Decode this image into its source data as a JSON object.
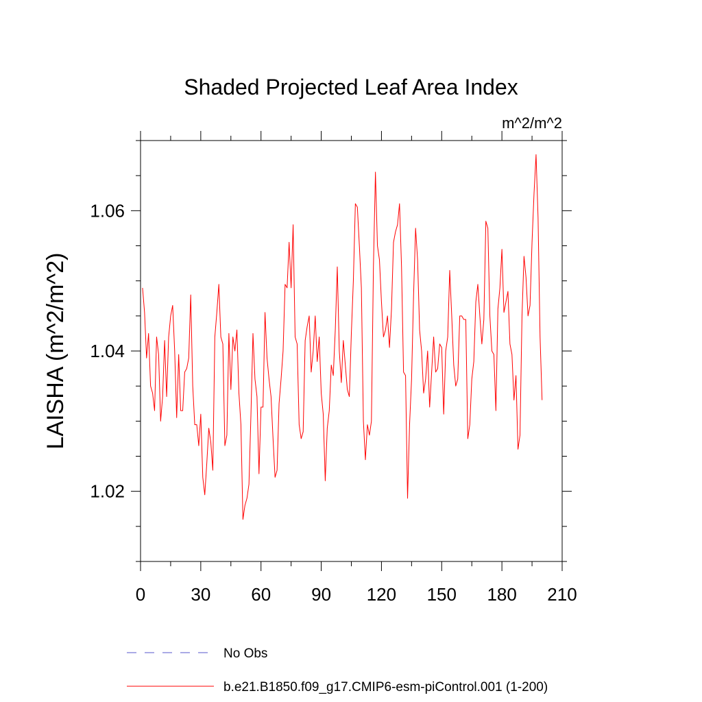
{
  "chart_data": {
    "type": "line",
    "title": "Shaded Projected Leaf Area Index",
    "units": "m^2/m^2",
    "ylabel": "LAISHA  (m^2/m^2)",
    "xlabel": "",
    "xlim": [
      0,
      210
    ],
    "ylim": [
      1.01,
      1.07
    ],
    "xticks": [
      0,
      30,
      60,
      90,
      120,
      150,
      180,
      210
    ],
    "xtick_labels": [
      "0",
      "30",
      "60",
      "90",
      "120",
      "150",
      "180",
      "210"
    ],
    "yticks": [
      1.02,
      1.04,
      1.06
    ],
    "ytick_labels": [
      "1.02",
      "1.04",
      "1.06"
    ],
    "legend": [
      {
        "label": "No Obs",
        "color": "#5555cc",
        "style": "dashed"
      },
      {
        "label": "b.e21.B1850.f09_g17.CMIP6-esm-piControl.001 (1-200)",
        "color": "#ff0000",
        "style": "solid"
      }
    ],
    "series": [
      {
        "name": "b.e21.B1850.f09_g17.CMIP6-esm-piControl.001 (1-200)",
        "color": "#ff0000",
        "x_start": 1,
        "values": [
          1.049,
          1.0455,
          1.039,
          1.0425,
          1.035,
          1.034,
          1.0315,
          1.042,
          1.0395,
          1.03,
          1.0335,
          1.0415,
          1.0335,
          1.042,
          1.045,
          1.0465,
          1.04,
          1.0305,
          1.0395,
          1.0315,
          1.0315,
          1.037,
          1.0375,
          1.039,
          1.048,
          1.035,
          1.0295,
          1.0295,
          1.0265,
          1.031,
          1.022,
          1.0195,
          1.024,
          1.029,
          1.027,
          1.023,
          1.042,
          1.0455,
          1.0495,
          1.042,
          1.041,
          1.0265,
          1.028,
          1.0425,
          1.0345,
          1.042,
          1.04,
          1.043,
          1.034,
          1.0295,
          1.016,
          1.018,
          1.019,
          1.021,
          1.031,
          1.0425,
          1.036,
          1.0335,
          1.0225,
          1.032,
          1.032,
          1.0455,
          1.039,
          1.036,
          1.0335,
          1.0275,
          1.022,
          1.023,
          1.0325,
          1.036,
          1.04,
          1.0495,
          1.049,
          1.0555,
          1.049,
          1.058,
          1.042,
          1.041,
          1.0295,
          1.0275,
          1.0285,
          1.0415,
          1.0435,
          1.045,
          1.037,
          1.04,
          1.045,
          1.0385,
          1.042,
          1.034,
          1.031,
          1.0215,
          1.029,
          1.0315,
          1.038,
          1.0365,
          1.043,
          1.052,
          1.04,
          1.0355,
          1.0415,
          1.038,
          1.0345,
          1.0335,
          1.0425,
          1.05,
          1.061,
          1.0605,
          1.055,
          1.049,
          1.03,
          1.0245,
          1.0295,
          1.028,
          1.03,
          1.052,
          1.0655,
          1.055,
          1.053,
          1.047,
          1.042,
          1.043,
          1.045,
          1.0405,
          1.046,
          1.0555,
          1.057,
          1.058,
          1.061,
          1.052,
          1.037,
          1.0365,
          1.019,
          1.0295,
          1.036,
          1.048,
          1.0575,
          1.053,
          1.043,
          1.04,
          1.034,
          1.036,
          1.04,
          1.032,
          1.037,
          1.042,
          1.037,
          1.0375,
          1.041,
          1.0405,
          1.031,
          1.04,
          1.042,
          1.0515,
          1.045,
          1.038,
          1.035,
          1.036,
          1.045,
          1.045,
          1.0445,
          1.0445,
          1.0275,
          1.0295,
          1.036,
          1.0385,
          1.047,
          1.0495,
          1.045,
          1.041,
          1.0445,
          1.0585,
          1.0575,
          1.045,
          1.04,
          1.0395,
          1.0315,
          1.046,
          1.049,
          1.0545,
          1.0455,
          1.047,
          1.0485,
          1.041,
          1.0395,
          1.033,
          1.0365,
          1.026,
          1.028,
          1.045,
          1.0535,
          1.0505,
          1.045,
          1.0465,
          1.0555,
          1.0625,
          1.068,
          1.059,
          1.042,
          1.033
        ]
      }
    ]
  }
}
